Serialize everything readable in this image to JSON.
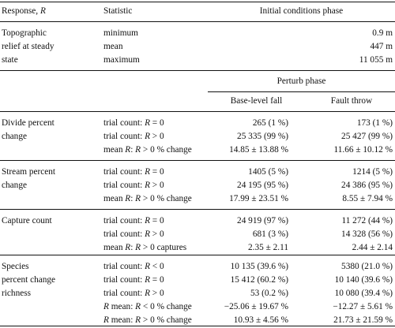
{
  "header": {
    "response_col": "Response, R",
    "statistic_col": "Statistic",
    "initial_phase": "Initial conditions phase",
    "perturb_phase": "Perturb phase",
    "base_level_fall": "Base-level fall",
    "fault_throw": "Fault throw"
  },
  "relief": {
    "response_lines": [
      "Topographic",
      "relief at steady",
      "state"
    ],
    "rows": [
      {
        "statistic": "minimum",
        "value": "0.9 m"
      },
      {
        "statistic": "mean",
        "value": "447 m"
      },
      {
        "statistic": "maximum",
        "value": "11 055 m"
      }
    ]
  },
  "groups": [
    {
      "response_lines": [
        "Divide percent",
        "change"
      ],
      "rows": [
        {
          "statistic": "trial count: R = 0",
          "base": "265 (1 %)",
          "fault": "173 (1 %)"
        },
        {
          "statistic": "trial count: R > 0",
          "base": "25 335 (99 %)",
          "fault": "25 427 (99 %)"
        },
        {
          "statistic": "mean R: R > 0 % change",
          "base": "14.85 ± 13.88 %",
          "fault": "11.66 ± 10.12 %"
        }
      ]
    },
    {
      "response_lines": [
        "Stream percent",
        "change"
      ],
      "rows": [
        {
          "statistic": "trial count: R = 0",
          "base": "1405 (5 %)",
          "fault": "1214 (5 %)"
        },
        {
          "statistic": "trial count: R > 0",
          "base": "24 195 (95 %)",
          "fault": "24 386 (95 %)"
        },
        {
          "statistic": "mean R: R > 0 % change",
          "base": "17.99 ± 23.51 %",
          "fault": "8.55 ± 7.94 %"
        }
      ]
    },
    {
      "response_lines": [
        "Capture count"
      ],
      "rows": [
        {
          "statistic": "trial count: R = 0",
          "base": "24 919 (97 %)",
          "fault": "11 272 (44 %)"
        },
        {
          "statistic": "trial count: R > 0",
          "base": "681 (3 %)",
          "fault": "14 328 (56 %)"
        },
        {
          "statistic": "mean R: R > 0 captures",
          "base": "2.35 ± 2.11",
          "fault": "2.44 ± 2.14"
        }
      ]
    },
    {
      "response_lines": [
        "Species",
        "percent change",
        "richness"
      ],
      "rows": [
        {
          "statistic": "trial count: R < 0",
          "base": "10 135 (39.6 %)",
          "fault": "5380 (21.0 %)"
        },
        {
          "statistic": "trial count: R = 0",
          "base": "15 412 (60.2 %)",
          "fault": "10 140 (39.6 %)"
        },
        {
          "statistic": "trial count: R > 0",
          "base": "53 (0.2 %)",
          "fault": "10 080 (39.4 %)"
        },
        {
          "statistic": "R mean: R < 0 % change",
          "base": "−25.06 ± 19.67 %",
          "fault": "−12.27 ± 5.61 %"
        },
        {
          "statistic": "R mean: R > 0 % change",
          "base": "10.93 ± 4.56 %",
          "fault": "21.73 ± 21.59 %"
        }
      ]
    }
  ]
}
